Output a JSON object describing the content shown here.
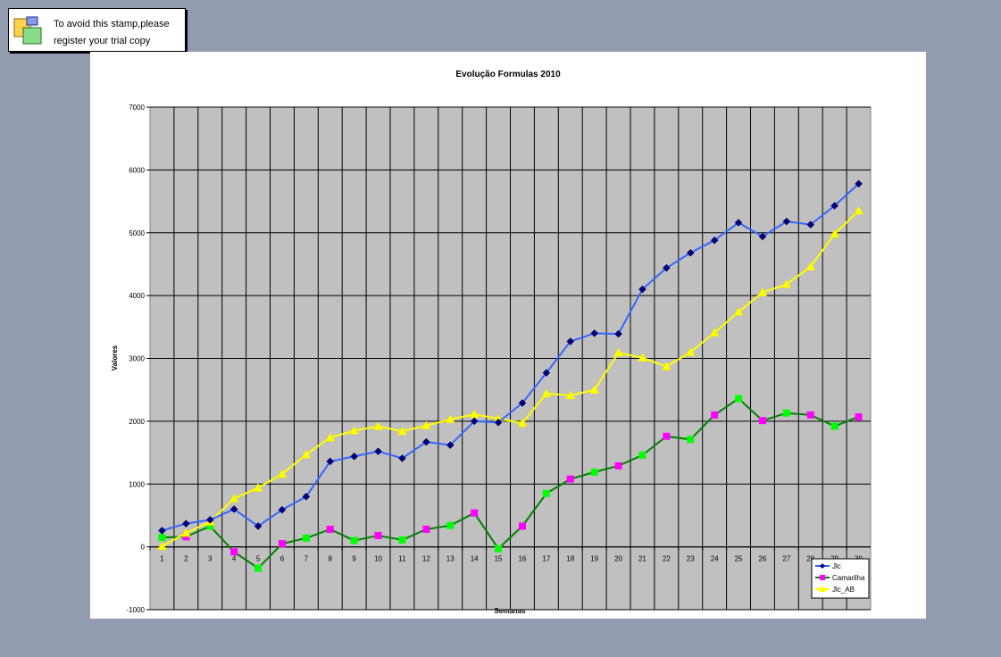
{
  "stamp": {
    "line1": "To avoid this stamp,please",
    "line2": "register your trial copy",
    "icon": "windows-icon"
  },
  "chart_data": {
    "type": "line",
    "title": "Evolução Formulas 2010",
    "xlabel": "Semanas",
    "ylabel": "Valores",
    "ylim": [
      -1000,
      7000
    ],
    "yticks": [
      -1000,
      0,
      1000,
      2000,
      3000,
      4000,
      5000,
      6000,
      7000
    ],
    "categories": [
      "1",
      "2",
      "3",
      "4",
      "5",
      "6",
      "7",
      "8",
      "9",
      "10",
      "11",
      "12",
      "13",
      "14",
      "15",
      "16",
      "17",
      "18",
      "19",
      "20",
      "21",
      "22",
      "23",
      "24",
      "25",
      "26",
      "27",
      "28",
      "29",
      "30"
    ],
    "grid": true,
    "legend": "bottom-right",
    "series": [
      {
        "name": "Jlc",
        "color": "#3366ff",
        "marker": "diamond",
        "marker_color": "#000080",
        "values": [
          260,
          370,
          430,
          600,
          330,
          590,
          800,
          1360,
          1440,
          1520,
          1410,
          1670,
          1620,
          2000,
          1980,
          2290,
          2770,
          3270,
          3400,
          3390,
          4100,
          4440,
          4680,
          4880,
          5160,
          4940,
          5180,
          5130,
          5430,
          5780
        ]
      },
      {
        "name": "Camarilha",
        "color": "#008000",
        "marker": "square",
        "marker_colors": [
          "#00ff00",
          "#ff00ff"
        ],
        "values": [
          150,
          160,
          330,
          -80,
          -340,
          50,
          140,
          280,
          100,
          180,
          110,
          280,
          340,
          540,
          -30,
          330,
          850,
          1080,
          1190,
          1290,
          1460,
          1760,
          1710,
          2100,
          2360,
          2010,
          2130,
          2100,
          1920,
          2070
        ]
      },
      {
        "name": "Jlc_AB",
        "color": "#ffff00",
        "marker": "triangle",
        "marker_color": "#ffff00",
        "values": [
          10,
          220,
          400,
          770,
          940,
          1160,
          1470,
          1740,
          1850,
          1920,
          1840,
          1930,
          2030,
          2110,
          2040,
          1970,
          2440,
          2410,
          2500,
          3090,
          3010,
          2870,
          3100,
          3410,
          3740,
          4050,
          4180,
          4460,
          4980,
          5350
        ]
      }
    ]
  }
}
